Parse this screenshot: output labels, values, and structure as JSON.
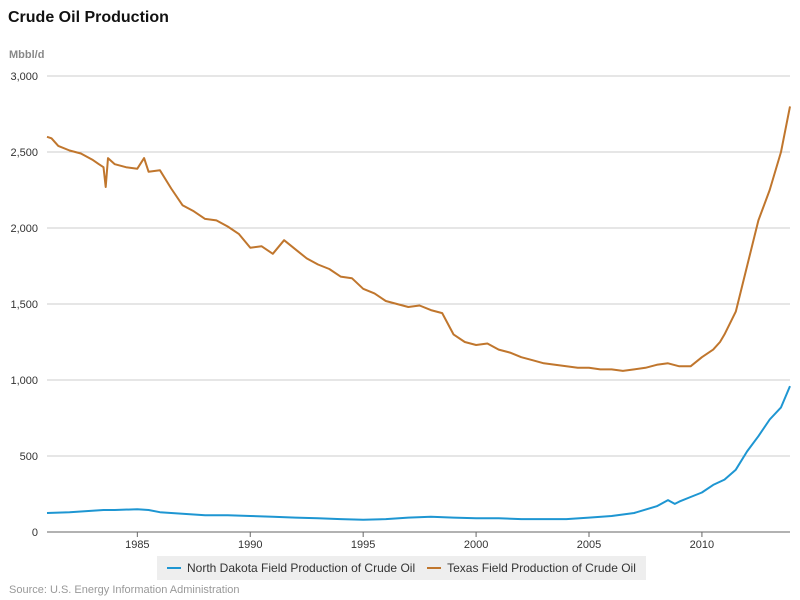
{
  "chart_data": {
    "type": "line",
    "title": "Crude Oil Production",
    "ylabel": "Mbbl/d",
    "xlabel": "",
    "ylim": [
      0,
      3000
    ],
    "xlim": [
      1981.0,
      2013.9
    ],
    "yticks": [
      "0",
      "500",
      "1,000",
      "1,500",
      "2,000",
      "2,500",
      "3,000"
    ],
    "ytick_values": [
      0,
      500,
      1000,
      1500,
      2000,
      2500,
      3000
    ],
    "xticks": [
      "1985",
      "1990",
      "1995",
      "2000",
      "2005",
      "2010"
    ],
    "xtick_values": [
      1985,
      1990,
      1995,
      2000,
      2005,
      2010
    ],
    "grid": "horizontal",
    "legend_position": "bottom",
    "series": [
      {
        "name": "North Dakota Field Production of Crude Oil",
        "color": "#1e96d2",
        "x": [
          1981.0,
          1982.0,
          1983.0,
          1983.5,
          1984.0,
          1985.0,
          1985.5,
          1986.0,
          1987.0,
          1988.0,
          1989.0,
          1990.0,
          1991.0,
          1992.0,
          1993.0,
          1994.0,
          1995.0,
          1996.0,
          1997.0,
          1998.0,
          1999.0,
          2000.0,
          2001.0,
          2002.0,
          2003.0,
          2004.0,
          2005.0,
          2006.0,
          2007.0,
          2008.0,
          2008.5,
          2008.8,
          2009.0,
          2009.5,
          2010.0,
          2010.5,
          2011.0,
          2011.5,
          2012.0,
          2012.5,
          2013.0,
          2013.5,
          2013.9
        ],
        "values": [
          125,
          130,
          140,
          145,
          145,
          150,
          145,
          130,
          120,
          110,
          110,
          105,
          100,
          95,
          90,
          85,
          80,
          85,
          95,
          100,
          95,
          90,
          90,
          85,
          85,
          85,
          95,
          105,
          125,
          170,
          210,
          185,
          200,
          230,
          260,
          310,
          345,
          410,
          530,
          630,
          740,
          820,
          960
        ]
      },
      {
        "name": "Texas Field Production of Crude Oil",
        "color": "#c0762d",
        "x": [
          1981.0,
          1981.2,
          1981.5,
          1982.0,
          1982.5,
          1983.0,
          1983.3,
          1983.5,
          1983.6,
          1983.7,
          1984.0,
          1984.5,
          1985.0,
          1985.3,
          1985.5,
          1986.0,
          1986.5,
          1987.0,
          1987.5,
          1988.0,
          1988.5,
          1989.0,
          1989.5,
          1990.0,
          1990.5,
          1991.0,
          1991.5,
          1992.0,
          1992.5,
          1993.0,
          1993.5,
          1994.0,
          1994.5,
          1995.0,
          1995.5,
          1996.0,
          1996.5,
          1997.0,
          1997.5,
          1998.0,
          1998.5,
          1999.0,
          1999.5,
          2000.0,
          2000.5,
          2001.0,
          2001.5,
          2002.0,
          2002.5,
          2003.0,
          2003.5,
          2004.0,
          2004.5,
          2005.0,
          2005.5,
          2006.0,
          2006.5,
          2007.0,
          2007.5,
          2008.0,
          2008.5,
          2009.0,
          2009.5,
          2010.0,
          2010.5,
          2010.8,
          2011.0,
          2011.5,
          2012.0,
          2012.5,
          2013.0,
          2013.5,
          2013.9
        ],
        "values": [
          2600,
          2590,
          2540,
          2510,
          2490,
          2450,
          2420,
          2400,
          2270,
          2460,
          2420,
          2400,
          2390,
          2460,
          2370,
          2380,
          2260,
          2150,
          2110,
          2060,
          2050,
          2010,
          1960,
          1870,
          1880,
          1830,
          1920,
          1860,
          1800,
          1760,
          1730,
          1680,
          1670,
          1600,
          1570,
          1520,
          1500,
          1480,
          1490,
          1460,
          1440,
          1300,
          1250,
          1230,
          1240,
          1200,
          1180,
          1150,
          1130,
          1110,
          1100,
          1090,
          1080,
          1080,
          1070,
          1070,
          1060,
          1070,
          1080,
          1100,
          1110,
          1090,
          1090,
          1150,
          1200,
          1250,
          1300,
          1450,
          1750,
          2050,
          2250,
          2500,
          2800
        ]
      }
    ]
  },
  "source": "Source: U.S. Energy Information Administration"
}
